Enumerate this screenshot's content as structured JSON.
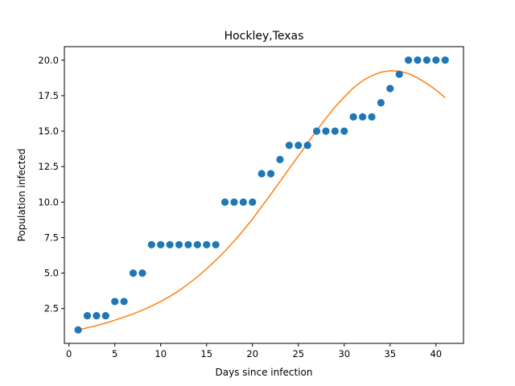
{
  "chart_data": {
    "type": "scatter",
    "title": "Hockley,Texas",
    "xlabel": "Days since infection",
    "ylabel": "Population infected",
    "xlim": [
      -0.5,
      43.0
    ],
    "ylim": [
      0.05,
      20.95
    ],
    "x_ticks": [
      0,
      5,
      10,
      15,
      20,
      25,
      30,
      35,
      40
    ],
    "y_ticks": [
      2.5,
      5.0,
      7.5,
      10.0,
      12.5,
      15.0,
      17.5,
      20.0
    ],
    "y_tick_labels": [
      "2.5",
      "5.0",
      "7.5",
      "10.0",
      "12.5",
      "15.0",
      "17.5",
      "20.0"
    ],
    "grid": false,
    "series": [
      {
        "kind": "scatter",
        "color": "#1f77b4",
        "x": [
          1,
          2,
          3,
          4,
          5,
          6,
          7,
          8,
          9,
          10,
          11,
          12,
          13,
          14,
          15,
          16,
          17,
          18,
          19,
          20,
          21,
          22,
          23,
          24,
          25,
          26,
          27,
          28,
          29,
          30,
          31,
          32,
          33,
          34,
          35,
          36,
          37,
          38,
          39,
          40,
          41
        ],
        "y": [
          1,
          2,
          2,
          2,
          3,
          3,
          5,
          5,
          7,
          7,
          7,
          7,
          7,
          7,
          7,
          7,
          10,
          10,
          10,
          10,
          12,
          12,
          13,
          14,
          14,
          14,
          15,
          15,
          15,
          15,
          16,
          16,
          16,
          17,
          18,
          19,
          20,
          20,
          20,
          20,
          20
        ]
      },
      {
        "kind": "line",
        "color": "#ff7f0e",
        "x": [
          1,
          2,
          3,
          4,
          5,
          6,
          7,
          8,
          9,
          10,
          11,
          12,
          13,
          14,
          15,
          16,
          17,
          18,
          19,
          20,
          21,
          22,
          23,
          24,
          25,
          26,
          27,
          28,
          29,
          30,
          31,
          32,
          33,
          34,
          35,
          36,
          37,
          38,
          39,
          40,
          41
        ],
        "y": [
          1.0,
          1.15,
          1.3,
          1.48,
          1.68,
          1.9,
          2.13,
          2.39,
          2.68,
          3.0,
          3.36,
          3.77,
          4.23,
          4.74,
          5.3,
          5.9,
          6.55,
          7.25,
          8.0,
          8.8,
          9.68,
          10.55,
          11.45,
          12.35,
          13.25,
          14.15,
          15.05,
          15.9,
          16.7,
          17.4,
          18.05,
          18.55,
          18.9,
          19.15,
          19.25,
          19.22,
          19.05,
          18.75,
          18.35,
          17.9,
          17.35
        ]
      }
    ]
  }
}
